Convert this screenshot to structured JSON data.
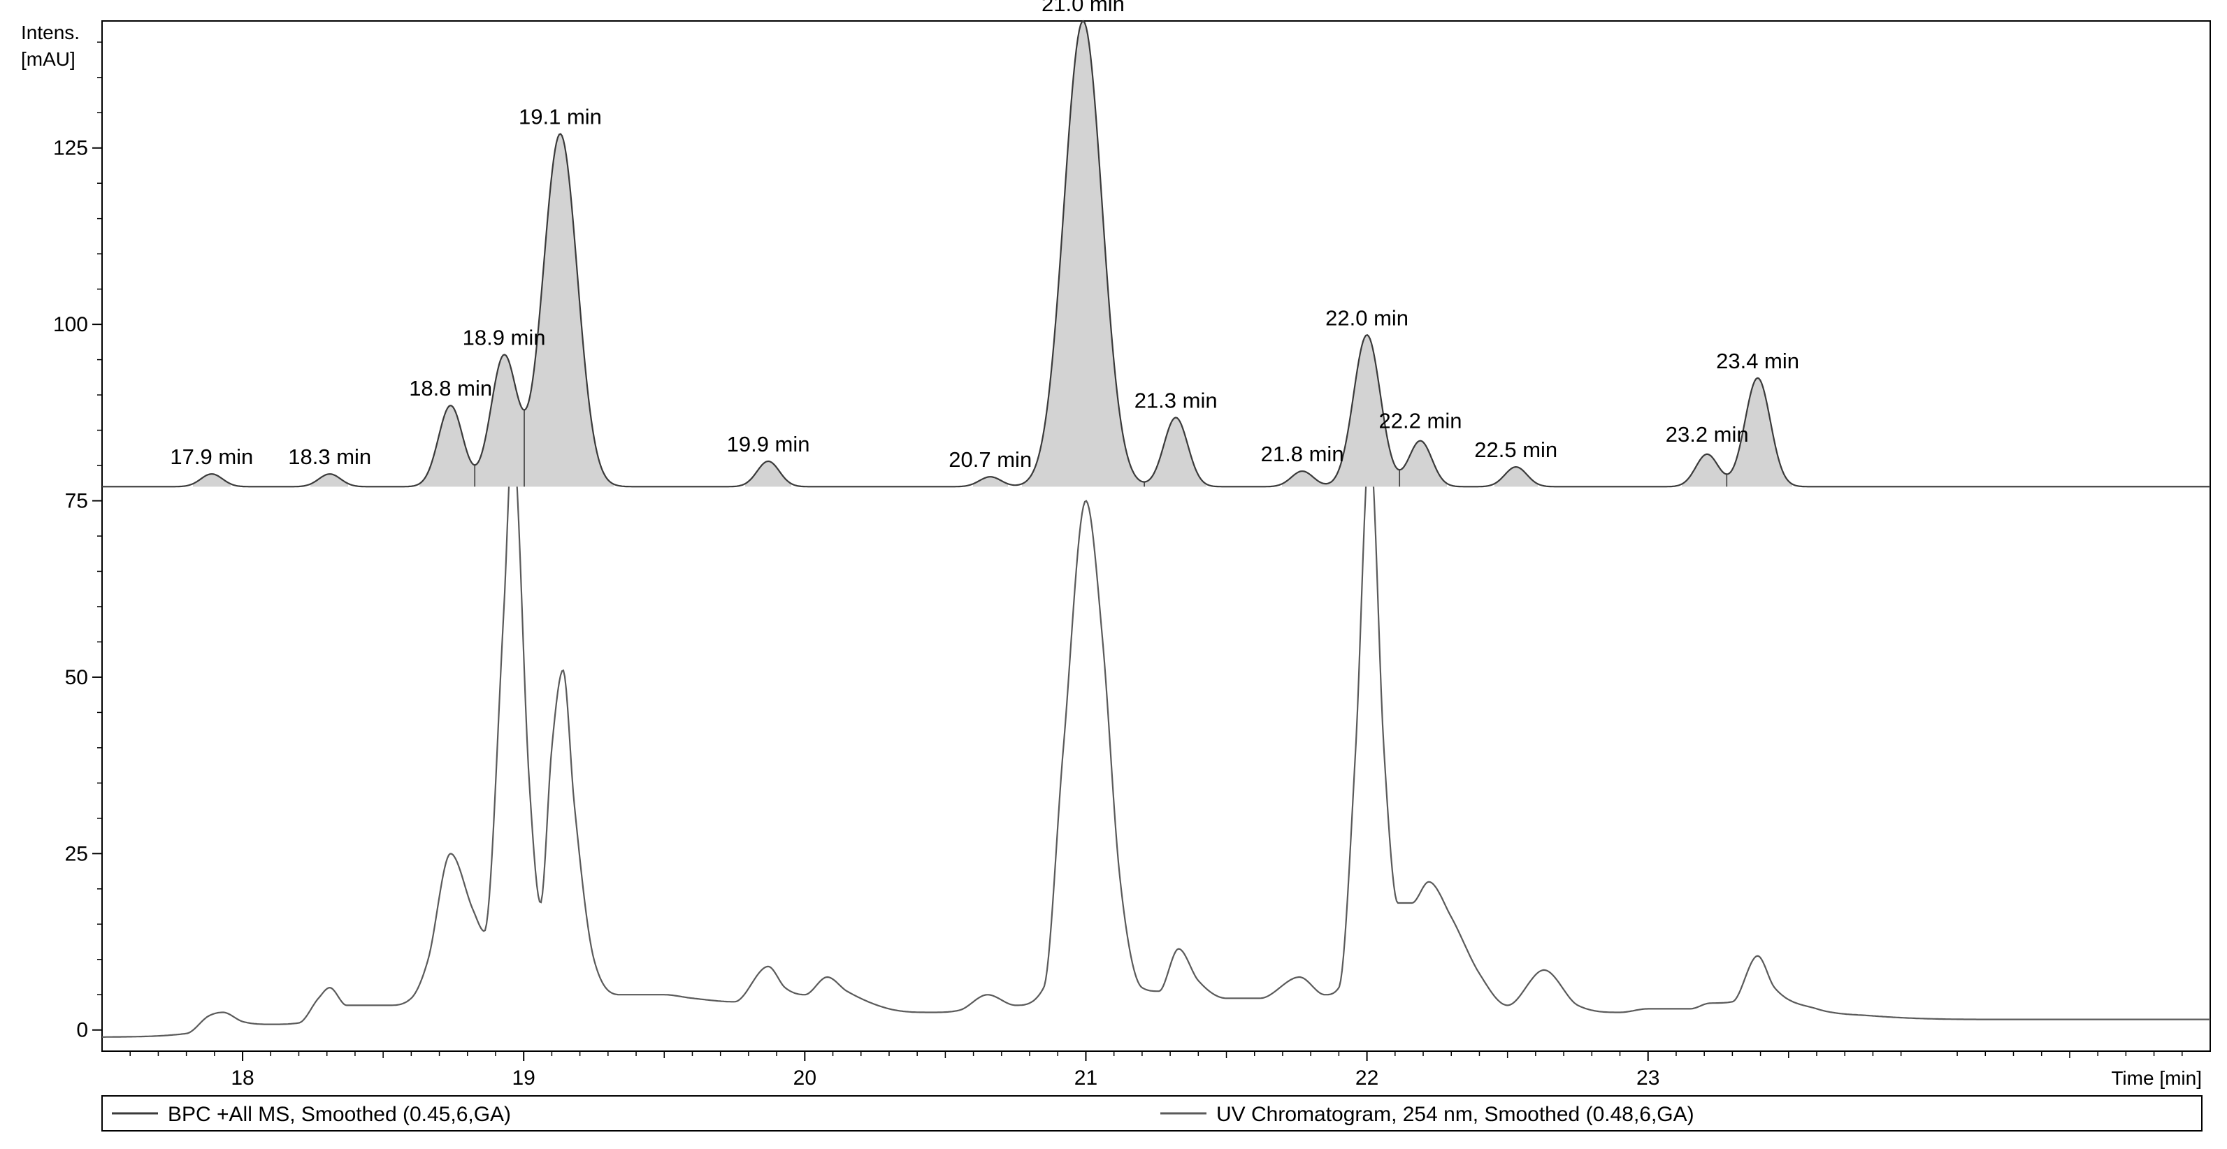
{
  "chart_data": {
    "type": "line",
    "title": "",
    "ylabel_line1": "Intens.",
    "ylabel_line2": "[mAU]",
    "xlabel": "Time [min]",
    "xlim": [
      17.5,
      25.0
    ],
    "ylim": [
      -3,
      143
    ],
    "y_ticks": [
      0,
      25,
      50,
      75,
      100,
      125
    ],
    "x_ticks": [
      18,
      19,
      20,
      21,
      22,
      23
    ],
    "grid": false,
    "legend_position": "bottom",
    "colors": {
      "bpc_line": "#3a3a3a",
      "bpc_fill": "#d3d3d3",
      "uv_line": "#5a5a5a"
    },
    "series": [
      {
        "name": "BPC +All MS, Smoothed (0.45,6,GA)",
        "baseline": 77,
        "peaks": [
          {
            "label": "17.9 min",
            "t": 17.89,
            "h": 1.8
          },
          {
            "label": "18.3 min",
            "t": 18.31,
            "h": 1.8
          },
          {
            "label": "18.8 min",
            "t": 18.74,
            "h": 11.5
          },
          {
            "label": "18.9 min",
            "t": 18.93,
            "h": 18.5
          },
          {
            "label": "19.1 min",
            "t": 19.13,
            "h": 50.0
          },
          {
            "label": "19.9 min",
            "t": 19.87,
            "h": 3.6
          },
          {
            "label": "20.7 min",
            "t": 20.66,
            "h": 1.4
          },
          {
            "label": "21.0 min",
            "t": 20.99,
            "h": 66.0
          },
          {
            "label": "21.3 min",
            "t": 21.32,
            "h": 9.8
          },
          {
            "label": "21.8 min",
            "t": 21.77,
            "h": 2.2
          },
          {
            "label": "22.0 min",
            "t": 22.0,
            "h": 21.5
          },
          {
            "label": "22.2 min",
            "t": 22.19,
            "h": 6.5
          },
          {
            "label": "22.5 min",
            "t": 22.53,
            "h": 2.8
          },
          {
            "label": "23.2 min",
            "t": 23.21,
            "h": 4.6
          },
          {
            "label": "23.4 min",
            "t": 23.39,
            "h": 15.4
          }
        ]
      },
      {
        "name": "UV Chromatogram, 254 nm, Smoothed (0.48,6,GA)",
        "x": [
          17.5,
          17.8,
          17.88,
          17.93,
          18.0,
          18.1,
          18.2,
          18.27,
          18.31,
          18.37,
          18.45,
          18.52,
          18.6,
          18.66,
          18.74,
          18.82,
          18.86,
          18.93,
          18.96,
          19.02,
          19.06,
          19.1,
          19.14,
          19.18,
          19.25,
          19.35,
          19.5,
          19.6,
          19.75,
          19.87,
          19.93,
          20.0,
          20.08,
          20.15,
          20.3,
          20.45,
          20.55,
          20.65,
          20.75,
          20.85,
          20.92,
          21.0,
          21.06,
          21.12,
          21.2,
          21.26,
          21.33,
          21.4,
          21.5,
          21.62,
          21.76,
          21.85,
          21.9,
          21.96,
          22.01,
          22.06,
          22.11,
          22.16,
          22.22,
          22.3,
          22.4,
          22.5,
          22.63,
          22.75,
          22.9,
          23.0,
          23.15,
          23.22,
          23.3,
          23.39,
          23.45,
          23.6,
          23.8,
          24.2,
          24.6,
          25.0
        ],
        "values": [
          -1,
          -0.5,
          2,
          2.5,
          1.2,
          0.8,
          1.0,
          4.5,
          6,
          3.5,
          3.5,
          3.5,
          4.5,
          10,
          25,
          17,
          14,
          60,
          84,
          35,
          18,
          40,
          51,
          32,
          10,
          5,
          5,
          4.5,
          4,
          9,
          6,
          5,
          7.5,
          5.5,
          3,
          2.5,
          2.8,
          5,
          3.5,
          6,
          40,
          75,
          55,
          22,
          6,
          5.5,
          11.5,
          7,
          4.5,
          4.5,
          7.5,
          5,
          6,
          40,
          83,
          40,
          18,
          18,
          21,
          16,
          8,
          3.5,
          8.5,
          3.5,
          2.5,
          3,
          3,
          3.8,
          4,
          10.5,
          6,
          3,
          2,
          1.5,
          1.5,
          1.5
        ]
      }
    ]
  }
}
